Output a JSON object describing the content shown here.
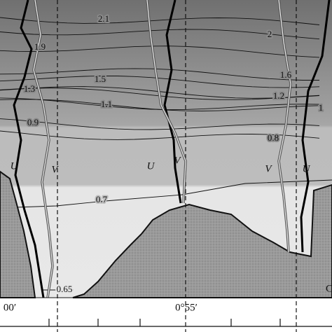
{
  "chart_data": {
    "type": "contour",
    "contour_levels": [
      2.1,
      2,
      1.9,
      1.6,
      1.5,
      1.3,
      1.2,
      1.1,
      1,
      0.9,
      0.8,
      0.7,
      0.65
    ],
    "profile_labels": [
      "U",
      "V",
      "U",
      "V",
      "V",
      "U"
    ],
    "x_tick_labels": [
      "00′",
      "0°55′"
    ],
    "corner_label": "C"
  }
}
